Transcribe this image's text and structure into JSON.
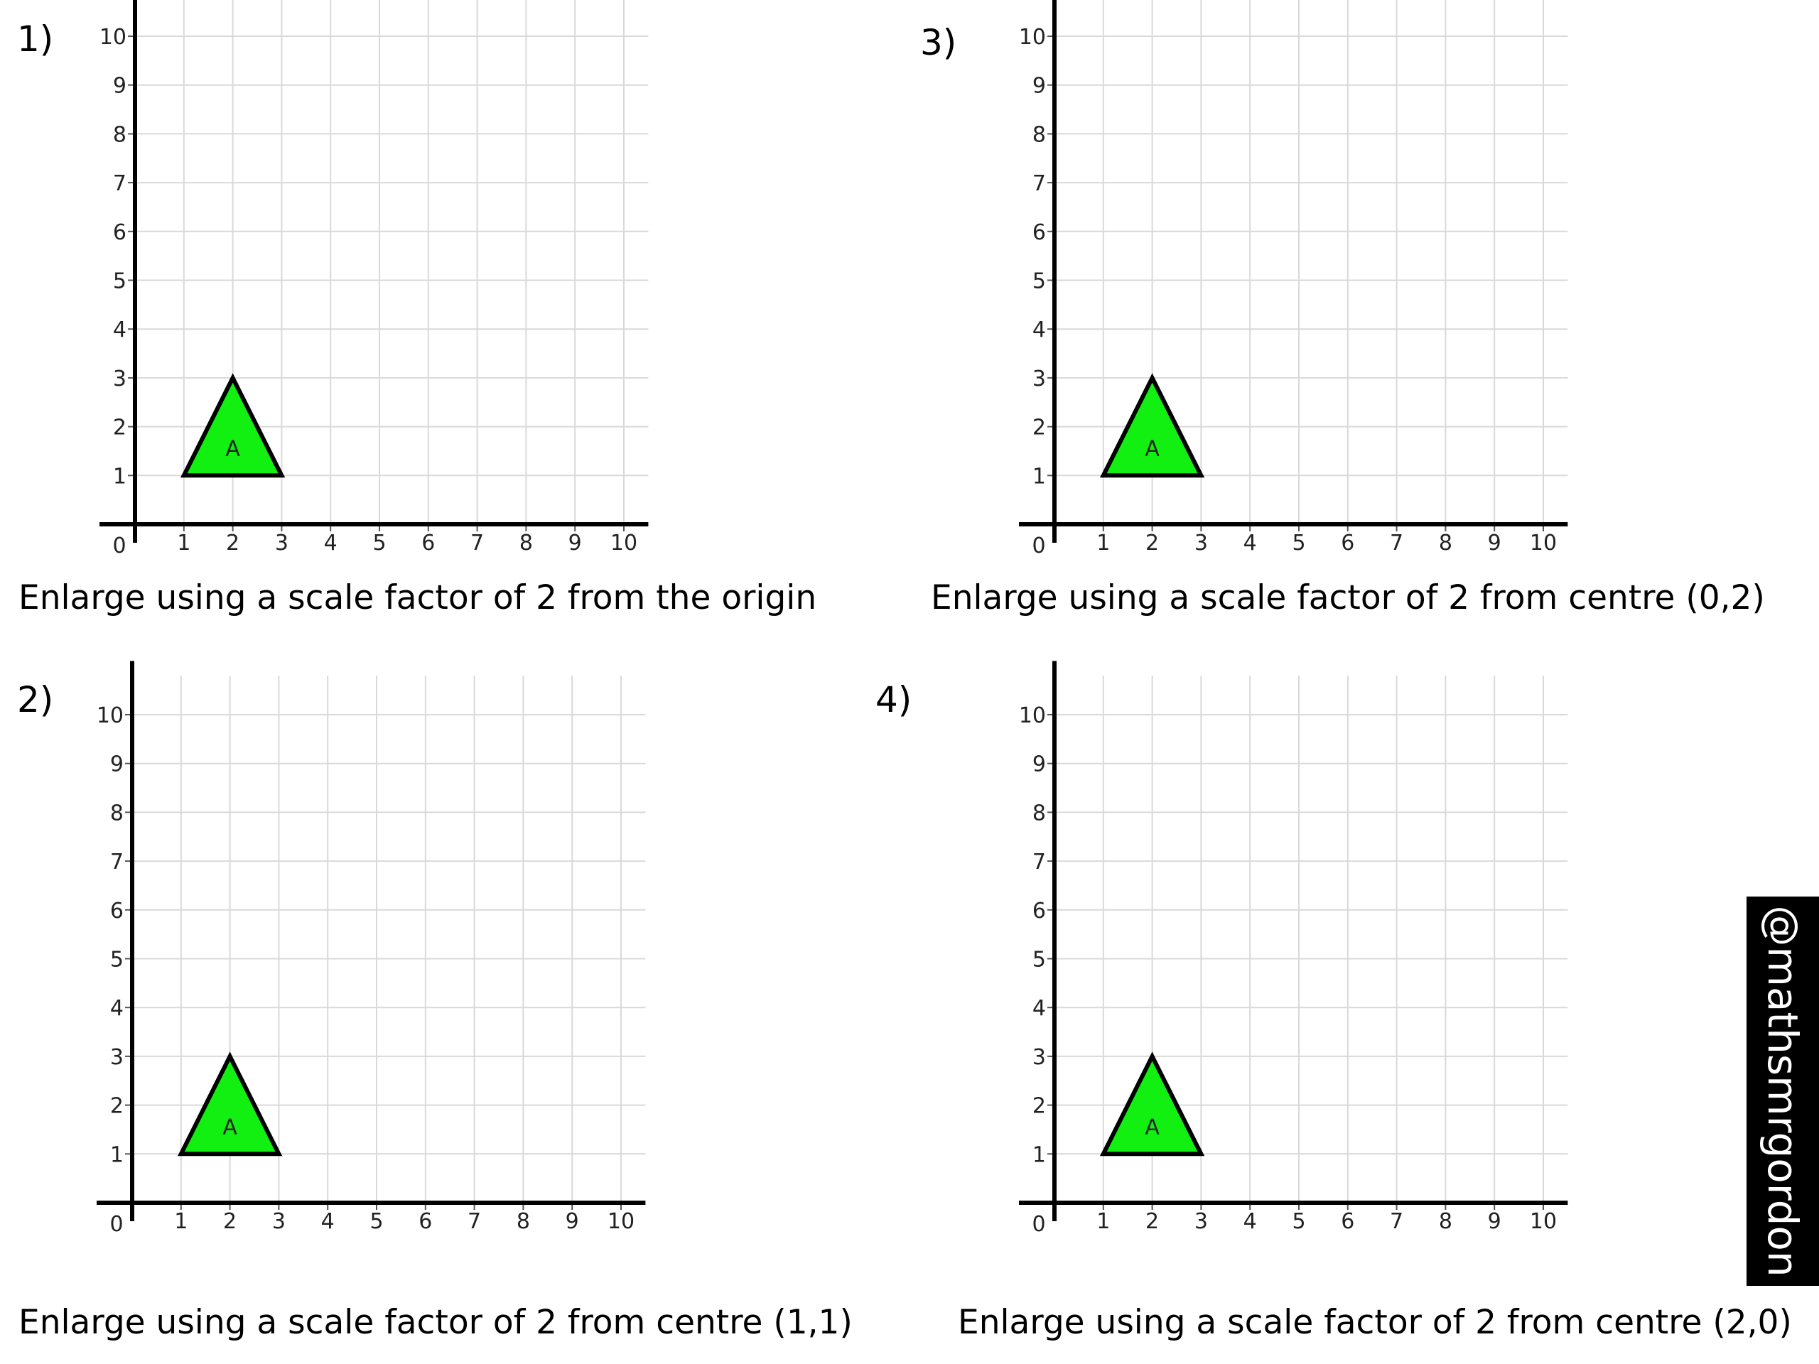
{
  "questions": [
    {
      "number": "1)",
      "instruction": "Enlarge using a scale factor of 2 from the origin",
      "shape": {
        "label": "A",
        "vertices": [
          [
            1,
            1
          ],
          [
            3,
            1
          ],
          [
            2,
            3
          ]
        ],
        "fill": "#11f011"
      }
    },
    {
      "number": "3)",
      "instruction": "Enlarge using a scale factor of 2 from centre (0,2)",
      "shape": {
        "label": "A",
        "vertices": [
          [
            1,
            1
          ],
          [
            3,
            1
          ],
          [
            2,
            3
          ]
        ],
        "fill": "#11f011"
      }
    },
    {
      "number": "2)",
      "instruction": "Enlarge using a scale factor of 2 from centre (1,1)",
      "shape": {
        "label": "A",
        "vertices": [
          [
            1,
            1
          ],
          [
            3,
            1
          ],
          [
            2,
            3
          ]
        ],
        "fill": "#11f011"
      }
    },
    {
      "number": "4)",
      "instruction": "Enlarge using a scale factor of 2 from centre (2,0)",
      "shape": {
        "label": "A",
        "vertices": [
          [
            1,
            1
          ],
          [
            3,
            1
          ],
          [
            2,
            3
          ]
        ],
        "fill": "#11f011"
      }
    }
  ],
  "grid": {
    "x_ticks": [
      "0",
      "1",
      "2",
      "3",
      "4",
      "5",
      "6",
      "7",
      "8",
      "9",
      "10"
    ],
    "y_ticks": [
      "1",
      "2",
      "3",
      "4",
      "5",
      "6",
      "7",
      "8",
      "9",
      "10"
    ],
    "xlim": [
      0,
      10.5
    ],
    "ylim": [
      0,
      10.5
    ],
    "grid_color": "#d9d9d9",
    "axis_color": "#000000"
  },
  "watermark": {
    "text": "@mathsmrgordon",
    "background": "#000000",
    "color": "#ffffff"
  }
}
